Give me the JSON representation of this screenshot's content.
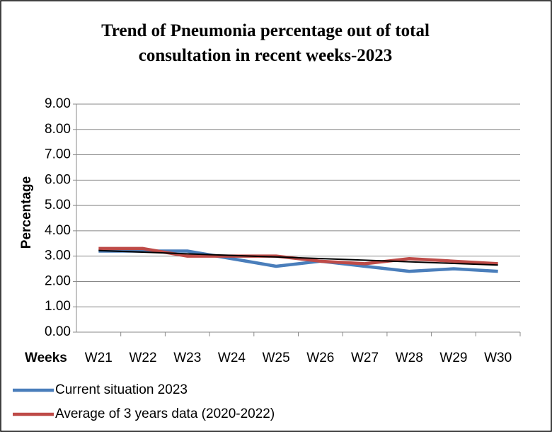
{
  "chart_data": {
    "type": "line",
    "title": "Trend of Pneumonia percentage out of total consultation in recent weeks-2023",
    "x_label": "Weeks",
    "y_label": "Percentage",
    "categories": [
      "W21",
      "W22",
      "W23",
      "W24",
      "W25",
      "W26",
      "W27",
      "W28",
      "W29",
      "W30"
    ],
    "series": [
      {
        "name": "Current situation 2023",
        "color": "#4a7ebb",
        "values": [
          3.2,
          3.2,
          3.2,
          2.9,
          2.6,
          2.8,
          2.6,
          2.4,
          2.5,
          2.4
        ]
      },
      {
        "name": "Average of 3 years data (2020-2022)",
        "color": "#be4b48",
        "values": [
          3.3,
          3.3,
          3.0,
          3.0,
          3.0,
          2.8,
          2.7,
          2.9,
          2.8,
          2.7
        ]
      }
    ],
    "trendline": {
      "color": "#000000",
      "values": [
        3.22,
        2.65
      ]
    },
    "ylim": [
      0,
      9
    ],
    "yticks": [
      {
        "value": 0,
        "label": "0.00"
      },
      {
        "value": 1,
        "label": "1.00"
      },
      {
        "value": 2,
        "label": "2.00"
      },
      {
        "value": 3,
        "label": "3.00"
      },
      {
        "value": 4,
        "label": "4.00"
      },
      {
        "value": 5,
        "label": "5.00"
      },
      {
        "value": 6,
        "label": "6.00"
      },
      {
        "value": 7,
        "label": "7.00"
      },
      {
        "value": 8,
        "label": "8.00"
      },
      {
        "value": 9,
        "label": "9.00"
      }
    ],
    "grid": true,
    "legend": "bottom"
  }
}
